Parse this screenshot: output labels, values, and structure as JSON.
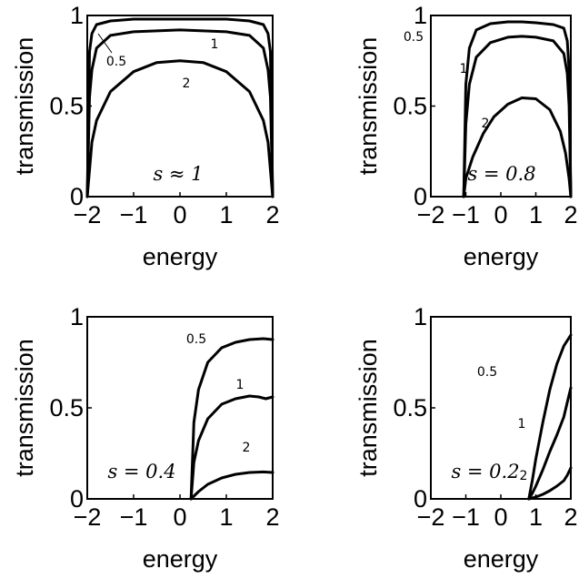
{
  "chart_data": [
    {
      "type": "line",
      "annotation": "s ≈ 1",
      "xlabel": "energy",
      "ylabel": "transmission",
      "xlim": [
        -2,
        2
      ],
      "ylim": [
        0,
        1
      ],
      "xticks": [
        "−2",
        "−1",
        "0",
        "1",
        "2"
      ],
      "yticks": [
        "0",
        "0.5",
        "1"
      ],
      "series": [
        {
          "name": "0.5",
          "x": [
            -2,
            -1.95,
            -1.9,
            -1.8,
            -1.5,
            -1,
            0,
            1,
            1.5,
            1.8,
            1.9,
            1.95,
            2
          ],
          "y": [
            0,
            0.8,
            0.9,
            0.95,
            0.97,
            0.98,
            0.98,
            0.98,
            0.97,
            0.95,
            0.9,
            0.8,
            0
          ]
        },
        {
          "name": "1",
          "x": [
            -2,
            -1.95,
            -1.9,
            -1.8,
            -1.5,
            -1,
            0,
            1,
            1.5,
            1.8,
            1.9,
            1.95,
            2
          ],
          "y": [
            0,
            0.55,
            0.7,
            0.82,
            0.89,
            0.91,
            0.92,
            0.91,
            0.89,
            0.82,
            0.7,
            0.55,
            0
          ]
        },
        {
          "name": "2",
          "x": [
            -2,
            -1.9,
            -1.8,
            -1.5,
            -1,
            -0.5,
            0,
            0.5,
            1,
            1.5,
            1.8,
            1.9,
            2
          ],
          "y": [
            0,
            0.3,
            0.42,
            0.58,
            0.69,
            0.74,
            0.75,
            0.74,
            0.69,
            0.58,
            0.42,
            0.3,
            0
          ]
        }
      ]
    },
    {
      "type": "line",
      "annotation": "s = 0.8",
      "xlabel": "energy",
      "ylabel": "transmission",
      "xlim": [
        -2,
        2
      ],
      "ylim": [
        0,
        1
      ],
      "xticks": [
        "−2",
        "−1",
        "0",
        "1",
        "2"
      ],
      "yticks": [
        "0",
        "0.5",
        "1"
      ],
      "series": [
        {
          "name": "0.5",
          "x": [
            -1.06,
            -1.0,
            -0.9,
            -0.7,
            -0.3,
            0.2,
            0.6,
            1.0,
            1.5,
            1.8,
            1.9,
            1.95,
            2
          ],
          "y": [
            0,
            0.62,
            0.82,
            0.92,
            0.955,
            0.965,
            0.965,
            0.96,
            0.95,
            0.93,
            0.86,
            0.7,
            0
          ]
        },
        {
          "name": "1",
          "x": [
            -1.06,
            -1.0,
            -0.9,
            -0.7,
            -0.3,
            0.2,
            0.6,
            1.0,
            1.5,
            1.8,
            1.9,
            1.95,
            2
          ],
          "y": [
            0,
            0.4,
            0.62,
            0.77,
            0.85,
            0.88,
            0.885,
            0.88,
            0.86,
            0.79,
            0.68,
            0.5,
            0
          ]
        },
        {
          "name": "2",
          "x": [
            -1.06,
            -1.0,
            -0.8,
            -0.5,
            -0.2,
            0.2,
            0.6,
            1.0,
            1.4,
            1.7,
            1.85,
            1.95,
            2
          ],
          "y": [
            0,
            0.1,
            0.22,
            0.35,
            0.44,
            0.51,
            0.545,
            0.54,
            0.48,
            0.36,
            0.24,
            0.1,
            0
          ]
        }
      ]
    },
    {
      "type": "line",
      "annotation": "s = 0.4",
      "xlabel": "energy",
      "ylabel": "transmission",
      "xlim": [
        -2,
        2
      ],
      "ylim": [
        0,
        1
      ],
      "xticks": [
        "−2",
        "−1",
        "0",
        "1",
        "2"
      ],
      "yticks": [
        "0",
        "0.5",
        "1"
      ],
      "series": [
        {
          "name": "0.5",
          "x": [
            0.24,
            0.3,
            0.4,
            0.6,
            0.9,
            1.2,
            1.5,
            1.8,
            2.0
          ],
          "y": [
            0,
            0.42,
            0.6,
            0.75,
            0.83,
            0.86,
            0.875,
            0.88,
            0.875
          ]
        },
        {
          "name": "1",
          "x": [
            0.24,
            0.3,
            0.4,
            0.6,
            0.9,
            1.2,
            1.5,
            1.7,
            1.85,
            2.0
          ],
          "y": [
            0,
            0.2,
            0.32,
            0.44,
            0.52,
            0.55,
            0.565,
            0.56,
            0.55,
            0.56
          ]
        },
        {
          "name": "2",
          "x": [
            0.24,
            0.4,
            0.6,
            0.9,
            1.2,
            1.5,
            1.8,
            2.0
          ],
          "y": [
            0,
            0.04,
            0.08,
            0.115,
            0.135,
            0.145,
            0.148,
            0.145
          ]
        }
      ]
    },
    {
      "type": "line",
      "annotation": "s = 0.2",
      "xlabel": "energy",
      "ylabel": "transmission",
      "xlim": [
        -2,
        2
      ],
      "ylim": [
        0,
        1
      ],
      "xticks": [
        "−2",
        "−1",
        "0",
        "1",
        "2"
      ],
      "yticks": [
        "0",
        "0.5",
        "1"
      ],
      "series": [
        {
          "name": "0.5",
          "x": [
            0.8,
            0.85,
            0.9,
            1.0,
            1.2,
            1.4,
            1.6,
            1.8,
            2.0
          ],
          "y": [
            0,
            0.05,
            0.1,
            0.22,
            0.42,
            0.6,
            0.74,
            0.84,
            0.9
          ]
        },
        {
          "name": "1",
          "x": [
            0.8,
            0.9,
            1.0,
            1.2,
            1.4,
            1.6,
            1.8,
            1.9,
            2.0
          ],
          "y": [
            0,
            0.03,
            0.07,
            0.16,
            0.26,
            0.35,
            0.45,
            0.53,
            0.61
          ]
        },
        {
          "name": "2",
          "x": [
            0.8,
            1.0,
            1.2,
            1.4,
            1.6,
            1.8,
            1.9,
            2.0
          ],
          "y": [
            0,
            0.01,
            0.025,
            0.045,
            0.07,
            0.1,
            0.13,
            0.17
          ]
        }
      ]
    }
  ]
}
